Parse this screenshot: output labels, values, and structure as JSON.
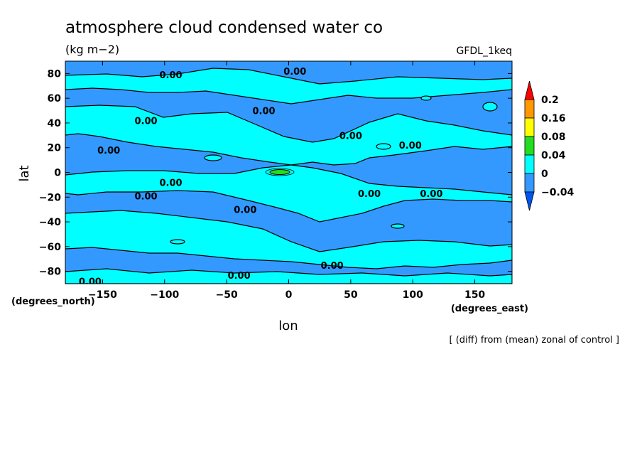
{
  "chart_data": {
    "type": "heatmap",
    "title": "atmosphere cloud condensed water co",
    "units": "(kg m−2)",
    "model": "GFDL_1keq",
    "xlabel": "lon",
    "ylabel": "lat",
    "x_units": "(degrees_east)",
    "y_units": "(degrees_north)",
    "footnote": "[ (diff) from (mean) zonal of control ]",
    "xlim": [
      -180,
      180
    ],
    "ylim": [
      -90,
      90
    ],
    "x_ticks": [
      -150,
      -100,
      -50,
      0,
      50,
      100,
      150
    ],
    "y_ticks": [
      -80,
      -60,
      -40,
      -20,
      0,
      20,
      40,
      60,
      80
    ],
    "colorbar": {
      "levels": [
        "0.2",
        "0.16",
        "0.08",
        "0.04",
        "0",
        "−0.04"
      ],
      "colors": [
        "#ff0000",
        "#ff9900",
        "#ffff00",
        "#22dd22",
        "#00ffff",
        "#3399ff",
        "#0055ee"
      ]
    },
    "contour_labels": [
      {
        "text": "0.00",
        "lon": -95,
        "lat": 79
      },
      {
        "text": "0.00",
        "lon": 5,
        "lat": 82
      },
      {
        "text": "0.00",
        "lon": -115,
        "lat": 42
      },
      {
        "text": "0.00",
        "lon": -20,
        "lat": 50
      },
      {
        "text": "0.00",
        "lon": -145,
        "lat": 18
      },
      {
        "text": "0.00",
        "lon": 50,
        "lat": 30
      },
      {
        "text": "0.00",
        "lon": 98,
        "lat": 22
      },
      {
        "text": "0.00",
        "lon": -95,
        "lat": -8
      },
      {
        "text": "0.00",
        "lon": -115,
        "lat": -19
      },
      {
        "text": "0.00",
        "lon": -35,
        "lat": -30
      },
      {
        "text": "0.00",
        "lon": 65,
        "lat": -17
      },
      {
        "text": "0.00",
        "lon": 115,
        "lat": -17
      },
      {
        "text": "0.00",
        "lon": 35,
        "lat": -75
      },
      {
        "text": "0.00",
        "lon": -40,
        "lat": -83
      },
      {
        "text": "0.00",
        "lon": -160,
        "lat": -88
      }
    ]
  }
}
